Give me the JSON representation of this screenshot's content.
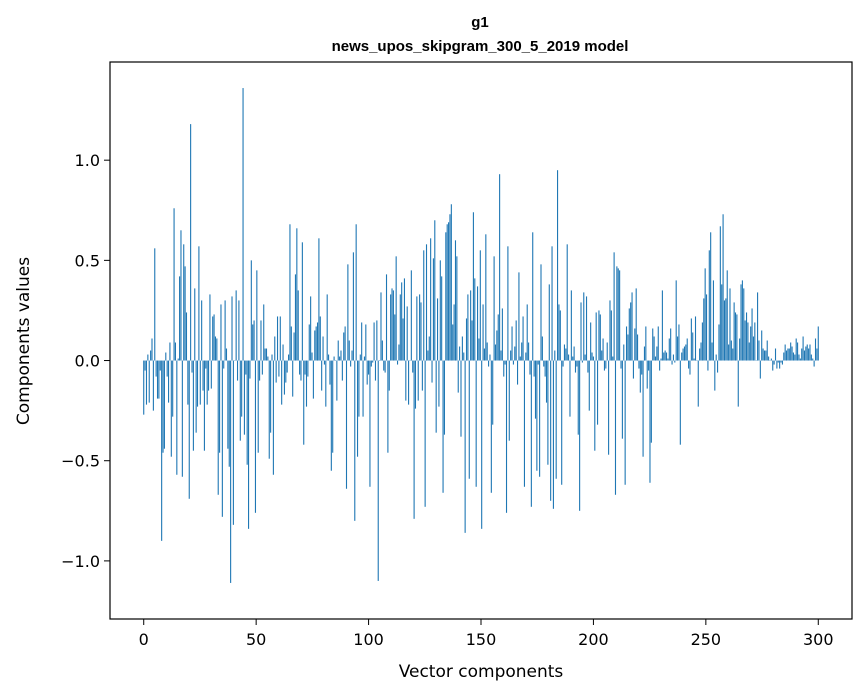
{
  "chart_data": {
    "type": "bar",
    "title": "g1",
    "subtitle": "news_upos_skipgram_300_5_2019 model",
    "xlabel": "Vector components",
    "ylabel": "Components values",
    "xlim": [
      -15,
      315
    ],
    "ylim": [
      -1.29,
      1.49
    ],
    "xticks": [
      {
        "value": 0,
        "label": "0"
      },
      {
        "value": 50,
        "label": "50"
      },
      {
        "value": 100,
        "label": "100"
      },
      {
        "value": 150,
        "label": "150"
      },
      {
        "value": 200,
        "label": "200"
      },
      {
        "value": 250,
        "label": "250"
      },
      {
        "value": 300,
        "label": "300"
      }
    ],
    "yticks": [
      {
        "value": -1.0,
        "label": "−1.0"
      },
      {
        "value": -0.5,
        "label": "−0.5"
      },
      {
        "value": 0.0,
        "label": "0.0"
      },
      {
        "value": 0.5,
        "label": "0.5"
      },
      {
        "value": 1.0,
        "label": "1.0"
      }
    ],
    "grid": false,
    "bar_color": "#1f77b4",
    "values": [
      -0.27,
      -0.05,
      -0.22,
      0.03,
      -0.21,
      0.05,
      0.11,
      -0.25,
      0.56,
      -0.08,
      -0.19,
      -0.19,
      -0.05,
      -0.9,
      -0.46,
      -0.44,
      0.04,
      -0.08,
      -0.21,
      0.09,
      -0.48,
      -0.28,
      0.76,
      0.09,
      -0.57,
      0.01,
      0.42,
      0.65,
      -0.58,
      0.58,
      0.47,
      0.24,
      -0.22,
      -0.69,
      1.18,
      -0.06,
      -0.45,
      0.36,
      -0.36,
      -0.23,
      0.57,
      -0.22,
      0.3,
      -0.15,
      -0.45,
      -0.04,
      -0.22,
      -0.15,
      0.33,
      -0.14,
      0.22,
      0.23,
      0.12,
      0.11,
      -0.67,
      -0.46,
      0.28,
      -0.78,
      -0.04,
      0.3,
      0.06,
      -0.44,
      -0.53,
      -1.11,
      0.32,
      -0.82,
      0.0,
      0.35,
      -0.1,
      0.3,
      -0.4,
      -0.28,
      1.36,
      -0.37,
      -0.07,
      -0.52,
      -0.84,
      -0.09,
      0.5,
      0.18,
      0.2,
      -0.76,
      0.45,
      -0.46,
      -0.1,
      0.2,
      -0.07,
      0.28,
      0.06,
      0.06,
      0.02,
      -0.49,
      -0.36,
      0.03,
      -0.57,
      0.12,
      -0.11,
      0.22,
      -0.08,
      0.22,
      -0.22,
      0.08,
      -0.17,
      -0.11,
      -0.06,
      0.03,
      0.68,
      0.17,
      -0.18,
      0.14,
      0.43,
      0.66,
      0.35,
      -0.07,
      -0.1,
      0.59,
      -0.42,
      -0.07,
      -0.23,
      -0.08,
      0.18,
      0.32,
      0.04,
      -0.19,
      0.15,
      0.17,
      0.19,
      0.61,
      0.22,
      -0.15,
      0.12,
      -0.02,
      -0.23,
      0.33,
      0.03,
      -0.12,
      -0.55,
      -0.46,
      0.02,
      0.0,
      -0.2,
      0.1,
      0.02,
      0.05,
      -0.1,
      0.14,
      0.17,
      -0.64,
      0.48,
      0.1,
      -0.03,
      0.05,
      0.54,
      -0.8,
      0.68,
      -0.48,
      -0.28,
      0.03,
      0.19,
      -0.28,
      0.02,
      0.18,
      -0.12,
      -0.07,
      -0.63,
      -0.03,
      -0.01,
      0.19,
      -0.1,
      0.2,
      -1.1,
      0.0,
      0.34,
      0.1,
      -0.05,
      -0.06,
      0.43,
      -0.46,
      -0.15,
      0.33,
      0.36,
      0.35,
      0.23,
      0.52,
      -0.02,
      0.08,
      0.33,
      0.39,
      0.21,
      0.41,
      -0.2,
      0.27,
      -0.22,
      0.0,
      0.45,
      -0.06,
      -0.79,
      -0.24,
      0.32,
      -0.2,
      0.33,
      0.29,
      -0.15,
      0.55,
      -0.73,
      0.58,
      0.05,
      0.12,
      0.61,
      -0.11,
      0.51,
      0.7,
      -0.36,
      0.31,
      -0.23,
      0.5,
      0.42,
      -0.66,
      -0.37,
      0.64,
      0.68,
      0.69,
      0.73,
      0.78,
      0.18,
      0.28,
      0.6,
      0.52,
      -0.16,
      0.07,
      -0.38,
      0.12,
      0.04,
      -0.86,
      0.21,
      0.33,
      -0.59,
      0.35,
      0.2,
      0.74,
      0.41,
      -0.63,
      0.37,
      0.11,
      0.55,
      -0.84,
      0.28,
      0.06,
      0.63,
      0.09,
      -0.03,
      0.03,
      -0.66,
      -0.32,
      0.52,
      0.08,
      0.15,
      0.23,
      0.93,
      0.05,
      0.26,
      -0.08,
      -0.02,
      -0.76,
      0.57,
      -0.4,
      0.05,
      0.17,
      -0.02,
      0.07,
      0.2,
      -0.12,
      0.44,
      0.02,
      0.09,
      0.22,
      -0.63,
      0.04,
      0.28,
      0.09,
      -0.07,
      -0.73,
      0.64,
      -0.08,
      -0.29,
      -0.55,
      -0.02,
      -0.58,
      0.48,
      0.12,
      -0.03,
      -0.08,
      -0.21,
      -0.52,
      0.38,
      -0.7,
      0.57,
      -0.74,
      0.05,
      -0.59,
      0.95,
      0.28,
      0.25,
      -0.62,
      -0.03,
      0.08,
      0.06,
      0.58,
      0.03,
      -0.28,
      0.35,
      0.02,
      0.07,
      -0.06,
      -0.03,
      -0.37,
      -0.75,
      0.29,
      -0.01,
      0.34,
      0.03,
      0.32,
      -0.06,
      -0.25,
      0.19,
      0.04,
      0.02,
      -0.45,
      0.24,
      -0.32,
      0.25,
      0.23,
      0.05,
      0.11,
      -0.05,
      -0.04,
      0.09,
      -0.47,
      0.3,
      0.25,
      0.02,
      0.54,
      -0.67,
      0.47,
      0.46,
      0.45,
      -0.04,
      -0.39,
      0.08,
      -0.62,
      0.17,
      0.13,
      0.26,
      0.29,
      0.34,
      -0.09,
      0.16,
      0.36,
      0.13,
      -0.04,
      -0.16,
      -0.07,
      -0.48,
      0.07,
      0.17,
      -0.14,
      -0.05,
      -0.61,
      -0.41,
      0.16,
      0.12,
      0.02,
      0.07,
      0.17,
      -0.05,
      0.01,
      0.35,
      0.04,
      0.05,
      0.04,
      0.01,
      0.11,
      0.16,
      -0.02,
      0.03,
      -0.01,
      0.4,
      0.12,
      0.18,
      -0.42,
      0.04,
      0.06,
      0.07,
      0.08,
      0.11,
      -0.04,
      -0.07,
      0.21,
      0.14,
      0.01,
      0.22,
      0.0,
      -0.23,
      0.06,
      0.09,
      0.19,
      0.31,
      0.46,
      0.33,
      -0.05,
      0.55,
      0.64,
      0.09,
      0.4,
      -0.15,
      0.03,
      -0.06,
      0.18,
      0.67,
      0.38,
      0.73,
      0.3,
      0.31,
      0.45,
      0.08,
      0.36,
      0.1,
      0.06,
      0.29,
      0.24,
      0.23,
      -0.23,
      0.11,
      0.38,
      0.4,
      0.36,
      0.2,
      0.24,
      0.19,
      0.09,
      0.17,
      0.26,
      0.12,
      0.19,
      0.0,
      0.34,
      0.1,
      -0.09,
      0.15,
      0.06,
      0.05,
      0.05,
      0.1,
      0.02,
      0.0,
      0.01,
      -0.05,
      -0.02,
      0.06,
      -0.04,
      -0.01,
      -0.04,
      -0.01,
      -0.02,
      0.04,
      0.08,
      0.05,
      0.06,
      0.06,
      0.09,
      0.07,
      0.04,
      0.03,
      0.11,
      0.09,
      0.03,
      0.01,
      0.06,
      0.12,
      0.05,
      0.07,
      0.08,
      0.06,
      0.08,
      0.03,
      0.01,
      -0.03,
      0.11,
      0.06,
      0.17
    ]
  }
}
